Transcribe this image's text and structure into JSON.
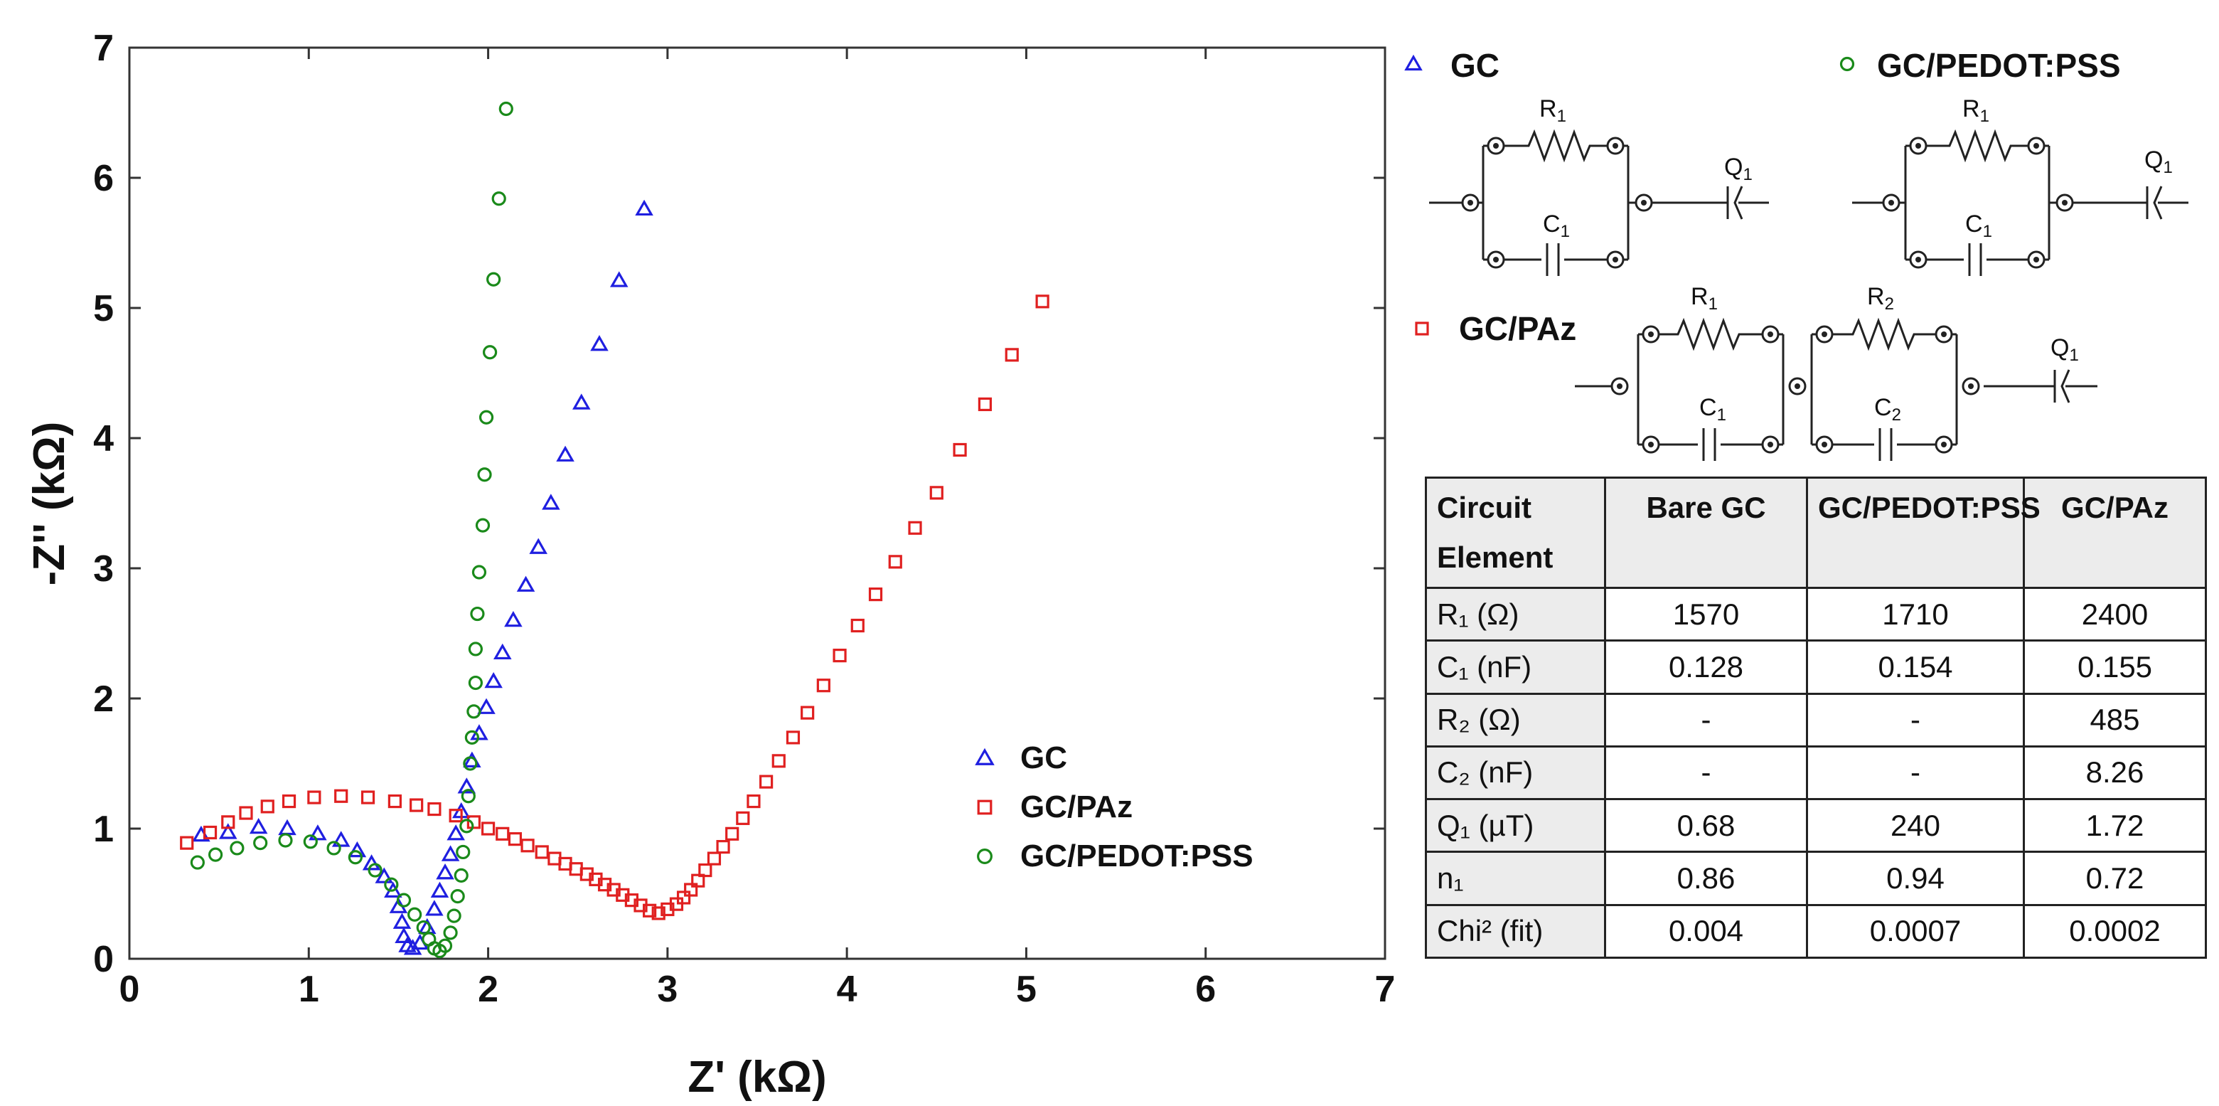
{
  "chart_data": {
    "type": "scatter",
    "xlabel": "Z' (kΩ)",
    "ylabel": "-Z'' (kΩ)",
    "xlim": [
      0,
      7
    ],
    "ylim": [
      0,
      7
    ],
    "xticks": [
      "0",
      "1",
      "2",
      "3",
      "4",
      "5",
      "6",
      "7"
    ],
    "yticks": [
      "0",
      "1",
      "2",
      "3",
      "4",
      "5",
      "6",
      "7"
    ],
    "grid": false,
    "legend_position": "bottom-right",
    "series": [
      {
        "name": "GC",
        "marker": "triangle",
        "color": "#1f1fe0",
        "points": [
          [
            0.4,
            0.95
          ],
          [
            0.55,
            0.97
          ],
          [
            0.72,
            1.01
          ],
          [
            0.88,
            1.0
          ],
          [
            1.05,
            0.96
          ],
          [
            1.18,
            0.91
          ],
          [
            1.27,
            0.83
          ],
          [
            1.35,
            0.73
          ],
          [
            1.42,
            0.63
          ],
          [
            1.47,
            0.52
          ],
          [
            1.5,
            0.4
          ],
          [
            1.52,
            0.28
          ],
          [
            1.53,
            0.17
          ],
          [
            1.55,
            0.1
          ],
          [
            1.58,
            0.08
          ],
          [
            1.62,
            0.12
          ],
          [
            1.66,
            0.24
          ],
          [
            1.7,
            0.38
          ],
          [
            1.73,
            0.52
          ],
          [
            1.76,
            0.66
          ],
          [
            1.79,
            0.8
          ],
          [
            1.82,
            0.96
          ],
          [
            1.85,
            1.13
          ],
          [
            1.88,
            1.32
          ],
          [
            1.91,
            1.52
          ],
          [
            1.95,
            1.73
          ],
          [
            1.99,
            1.93
          ],
          [
            2.03,
            2.13
          ],
          [
            2.08,
            2.35
          ],
          [
            2.14,
            2.6
          ],
          [
            2.21,
            2.87
          ],
          [
            2.28,
            3.16
          ],
          [
            2.35,
            3.5
          ],
          [
            2.43,
            3.87
          ],
          [
            2.52,
            4.27
          ],
          [
            2.62,
            4.72
          ],
          [
            2.73,
            5.21
          ],
          [
            2.87,
            5.76
          ]
        ]
      },
      {
        "name": "GC/PAz",
        "marker": "square",
        "color": "#e02020",
        "points": [
          [
            0.32,
            0.89
          ],
          [
            0.45,
            0.97
          ],
          [
            0.55,
            1.05
          ],
          [
            0.65,
            1.12
          ],
          [
            0.77,
            1.17
          ],
          [
            0.89,
            1.21
          ],
          [
            1.03,
            1.24
          ],
          [
            1.18,
            1.25
          ],
          [
            1.33,
            1.24
          ],
          [
            1.48,
            1.21
          ],
          [
            1.6,
            1.18
          ],
          [
            1.7,
            1.15
          ],
          [
            1.82,
            1.1
          ],
          [
            1.92,
            1.05
          ],
          [
            2.0,
            1.0
          ],
          [
            2.08,
            0.96
          ],
          [
            2.15,
            0.92
          ],
          [
            2.22,
            0.87
          ],
          [
            2.3,
            0.82
          ],
          [
            2.37,
            0.77
          ],
          [
            2.43,
            0.73
          ],
          [
            2.49,
            0.69
          ],
          [
            2.55,
            0.65
          ],
          [
            2.6,
            0.61
          ],
          [
            2.65,
            0.57
          ],
          [
            2.7,
            0.53
          ],
          [
            2.75,
            0.49
          ],
          [
            2.8,
            0.45
          ],
          [
            2.85,
            0.41
          ],
          [
            2.9,
            0.37
          ],
          [
            2.95,
            0.35
          ],
          [
            3.0,
            0.38
          ],
          [
            3.05,
            0.42
          ],
          [
            3.09,
            0.47
          ],
          [
            3.13,
            0.53
          ],
          [
            3.17,
            0.6
          ],
          [
            3.21,
            0.68
          ],
          [
            3.26,
            0.77
          ],
          [
            3.31,
            0.86
          ],
          [
            3.36,
            0.96
          ],
          [
            3.42,
            1.08
          ],
          [
            3.48,
            1.21
          ],
          [
            3.55,
            1.36
          ],
          [
            3.62,
            1.52
          ],
          [
            3.7,
            1.7
          ],
          [
            3.78,
            1.89
          ],
          [
            3.87,
            2.1
          ],
          [
            3.96,
            2.33
          ],
          [
            4.06,
            2.56
          ],
          [
            4.16,
            2.8
          ],
          [
            4.27,
            3.05
          ],
          [
            4.38,
            3.31
          ],
          [
            4.5,
            3.58
          ],
          [
            4.63,
            3.91
          ],
          [
            4.77,
            4.26
          ],
          [
            4.92,
            4.64
          ],
          [
            5.09,
            5.05
          ]
        ]
      },
      {
        "name": "GC/PEDOT:PSS",
        "marker": "circle",
        "color": "#1a8a1a",
        "points": [
          [
            0.38,
            0.74
          ],
          [
            0.48,
            0.8
          ],
          [
            0.6,
            0.85
          ],
          [
            0.73,
            0.89
          ],
          [
            0.87,
            0.91
          ],
          [
            1.01,
            0.9
          ],
          [
            1.14,
            0.85
          ],
          [
            1.26,
            0.78
          ],
          [
            1.37,
            0.68
          ],
          [
            1.46,
            0.57
          ],
          [
            1.53,
            0.45
          ],
          [
            1.59,
            0.34
          ],
          [
            1.64,
            0.24
          ],
          [
            1.67,
            0.15
          ],
          [
            1.7,
            0.08
          ],
          [
            1.73,
            0.06
          ],
          [
            1.76,
            0.1
          ],
          [
            1.79,
            0.2
          ],
          [
            1.81,
            0.33
          ],
          [
            1.83,
            0.48
          ],
          [
            1.85,
            0.64
          ],
          [
            1.86,
            0.82
          ],
          [
            1.88,
            1.02
          ],
          [
            1.89,
            1.25
          ],
          [
            1.9,
            1.5
          ],
          [
            1.91,
            1.7
          ],
          [
            1.92,
            1.9
          ],
          [
            1.93,
            2.12
          ],
          [
            1.93,
            2.38
          ],
          [
            1.94,
            2.65
          ],
          [
            1.95,
            2.97
          ],
          [
            1.97,
            3.33
          ],
          [
            1.98,
            3.72
          ],
          [
            1.99,
            4.16
          ],
          [
            2.01,
            4.66
          ],
          [
            2.03,
            5.22
          ],
          [
            2.06,
            5.84
          ],
          [
            2.1,
            6.53
          ]
        ]
      }
    ]
  },
  "circuits": [
    {
      "title": "GC",
      "marker": "triangle",
      "color": "#1f1fe0",
      "elements": {
        "r1": "R",
        "r1_sub": "1",
        "c1": "C",
        "c1_sub": "1",
        "q1": "Q",
        "q1_sub": "1"
      }
    },
    {
      "title": "GC/PEDOT:PSS",
      "marker": "circle",
      "color": "#1a8a1a",
      "elements": {
        "r1": "R",
        "r1_sub": "1",
        "c1": "C",
        "c1_sub": "1",
        "q1": "Q",
        "q1_sub": "1"
      }
    },
    {
      "title": "GC/PAz",
      "marker": "square",
      "color": "#e02020",
      "elements": {
        "r1": "R",
        "r1_sub": "1",
        "c1": "C",
        "c1_sub": "1",
        "r2": "R",
        "r2_sub": "2",
        "c2": "C",
        "c2_sub": "2",
        "q1": "Q",
        "q1_sub": "1"
      }
    }
  ],
  "table": {
    "headers": [
      "Circuit Element",
      "Bare GC",
      "GC/PEDOT:PSS",
      "GC/PAz"
    ],
    "rows": [
      {
        "label": "R₁ (Ω)",
        "values": [
          "1570",
          "1710",
          "2400"
        ]
      },
      {
        "label": "C₁ (nF)",
        "values": [
          "0.128",
          "0.154",
          "0.155"
        ]
      },
      {
        "label": "R₂ (Ω)",
        "values": [
          "-",
          "-",
          "485"
        ]
      },
      {
        "label": "C₂ (nF)",
        "values": [
          "-",
          "-",
          "8.26"
        ]
      },
      {
        "label": "Q₁ (µT)",
        "values": [
          "0.68",
          "240",
          "1.72"
        ]
      },
      {
        "label": "n₁",
        "values": [
          "0.86",
          "0.94",
          "0.72"
        ]
      },
      {
        "label": "Chi² (fit)",
        "values": [
          "0.004",
          "0.0007",
          "0.0002"
        ]
      }
    ]
  }
}
